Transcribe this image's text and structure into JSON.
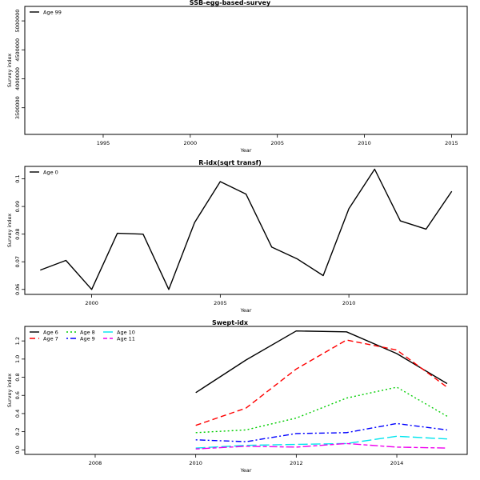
{
  "chart_data": [
    {
      "type": "line",
      "title": "SSB-egg-based-survey",
      "xlabel": "Year",
      "ylabel": "Survey index",
      "xlim": [
        1990.5,
        2015.9
      ],
      "ylim": [
        3040000,
        5250000
      ],
      "xticks": [
        1995,
        2000,
        2005,
        2010,
        2015
      ],
      "yticks": [
        3500000,
        4000000,
        4500000,
        5000000
      ],
      "legend_position": "top-left",
      "legend_columns": 1,
      "series": [
        {
          "name": "Age 99",
          "color": "#000000",
          "dash": "solid",
          "x": [],
          "y": []
        }
      ]
    },
    {
      "type": "line",
      "title": "R-idx(sqrt transf)",
      "xlabel": "Year",
      "ylabel": "Survey index",
      "xlim": [
        1997.4,
        2014.6
      ],
      "ylim": [
        0.0582,
        0.1045
      ],
      "xticks": [
        2000,
        2005,
        2010
      ],
      "yticks": [
        0.06,
        0.07,
        0.08,
        0.09,
        0.1
      ],
      "legend_position": "top-left",
      "legend_columns": 1,
      "series": [
        {
          "name": "Age 0",
          "color": "#000000",
          "dash": "solid",
          "x": [
            1998,
            1999,
            2000,
            2001,
            2002,
            2003,
            2004,
            2005,
            2006,
            2007,
            2008,
            2009,
            2010,
            2011,
            2012,
            2013,
            2014
          ],
          "y": [
            0.067,
            0.0705,
            0.06,
            0.0803,
            0.08,
            0.06,
            0.0842,
            0.099,
            0.0945,
            0.0753,
            0.071,
            0.065,
            0.0892,
            0.1035,
            0.0848,
            0.0818,
            0.0955
          ]
        }
      ]
    },
    {
      "type": "line",
      "title": "Swept-idx",
      "xlabel": "Year",
      "ylabel": "Survey index",
      "xlim": [
        2006.6,
        2015.4
      ],
      "ylim": [
        -0.05,
        1.36
      ],
      "xticks": [
        2008,
        2010,
        2012,
        2014
      ],
      "yticks": [
        0.0,
        0.2,
        0.4,
        0.6,
        0.8,
        1.0,
        1.2
      ],
      "legend_position": "top-left",
      "legend_columns": 3,
      "series": [
        {
          "name": "Age 6",
          "color": "#000000",
          "dash": "solid",
          "x": [
            2010,
            2011,
            2012,
            2013,
            2014,
            2015
          ],
          "y": [
            0.63,
            0.99,
            1.31,
            1.3,
            1.06,
            0.73
          ]
        },
        {
          "name": "Age 7",
          "color": "#ff0000",
          "dash": "dashed",
          "x": [
            2010,
            2011,
            2012,
            2013,
            2014,
            2015
          ],
          "y": [
            0.27,
            0.46,
            0.89,
            1.21,
            1.1,
            0.69
          ]
        },
        {
          "name": "Age 8",
          "color": "#00cd00",
          "dash": "dotted",
          "x": [
            2010,
            2011,
            2012,
            2013,
            2014,
            2015
          ],
          "y": [
            0.19,
            0.22,
            0.35,
            0.57,
            0.69,
            0.37
          ]
        },
        {
          "name": "Age 9",
          "color": "#0000ff",
          "dash": "dotdash",
          "x": [
            2010,
            2011,
            2012,
            2013,
            2014,
            2015
          ],
          "y": [
            0.11,
            0.09,
            0.18,
            0.19,
            0.29,
            0.22
          ]
        },
        {
          "name": "Age 10",
          "color": "#00e5ee",
          "dash": "longdash",
          "x": [
            2010,
            2011,
            2012,
            2013,
            2014,
            2015
          ],
          "y": [
            0.02,
            0.05,
            0.06,
            0.07,
            0.15,
            0.12
          ]
        },
        {
          "name": "Age 11",
          "color": "#ee00ee",
          "dash": "twodash",
          "x": [
            2010,
            2011,
            2012,
            2013,
            2014,
            2015
          ],
          "y": [
            0.01,
            0.04,
            0.03,
            0.07,
            0.03,
            0.02
          ]
        }
      ]
    }
  ]
}
